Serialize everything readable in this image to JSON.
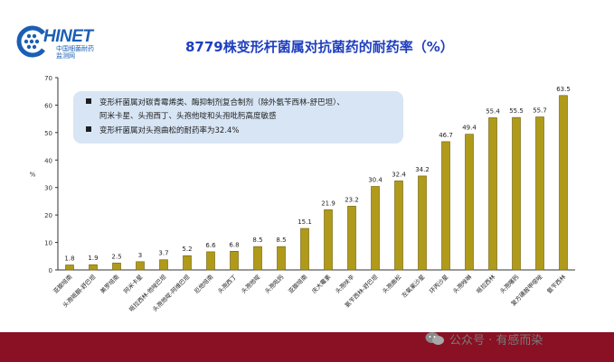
{
  "logo": {
    "word": "HINET",
    "sub_line1": "中国细菌耐药",
    "sub_line2": "监测网"
  },
  "title": "8779株变形杆菌属对抗菌药的耐药率（%）",
  "notes": [
    "变形杆菌属对碳青霉烯类、酶抑制剂复合制剂（除外氨苄西林-舒巴坦）、",
    "阿米卡星、头孢西丁、头孢他啶和头孢吡肟高度敏感",
    "变形杆菌属对头孢曲松的耐药率为32.4%"
  ],
  "watermark": "公众号 · 有感而染",
  "colors": {
    "bar": "#b09a1a",
    "bar_dark": "#6e5c08",
    "title": "#1f3fbf",
    "footer": "#8a1023",
    "note_bg": "#d7e5f5"
  },
  "chart_data": {
    "type": "bar",
    "title": "8779株变形杆菌属对抗菌药的耐药率（%）",
    "xlabel": "",
    "ylabel": "%",
    "ylim": [
      0,
      70
    ],
    "yticks": [
      0,
      10,
      20,
      30,
      40,
      50,
      60,
      70
    ],
    "grid": false,
    "categories": [
      "亚胺培南",
      "头孢哌酮-舒巴坦",
      "美罗培南",
      "阿米卡星",
      "哌拉西林-他唑巴坦",
      "头孢他啶-阿维巴坦",
      "厄他培南",
      "头孢西丁",
      "头孢他啶",
      "头孢吡肟",
      "亚胺培南",
      "庆大霉素",
      "头孢呋辛",
      "氨苄西林-舒巴坦",
      "头孢曲松",
      "左氧氟沙星",
      "环丙沙星",
      "头孢唑啉",
      "哌拉西林",
      "头孢噻肟",
      "复方磺胺甲噁唑",
      "氨苄西林"
    ],
    "values": [
      1.8,
      1.9,
      2.5,
      3,
      3.7,
      5.2,
      6.6,
      6.8,
      8.5,
      8.5,
      15.1,
      21.9,
      23.2,
      30.4,
      32.4,
      34.2,
      46.7,
      49.4,
      55.4,
      55.5,
      55.7,
      63.5
    ],
    "value_labels": [
      "1.8",
      "1.9",
      "2.5",
      "3",
      "3.7",
      "5.2",
      "6.6",
      "6.8",
      "8.5",
      "8.5",
      "15.1",
      "21.9",
      "23.2",
      "30.4",
      "32.4",
      "34.2",
      "46.7",
      "49.4",
      "55.4",
      "55.5",
      "55.7",
      "63.5"
    ]
  }
}
